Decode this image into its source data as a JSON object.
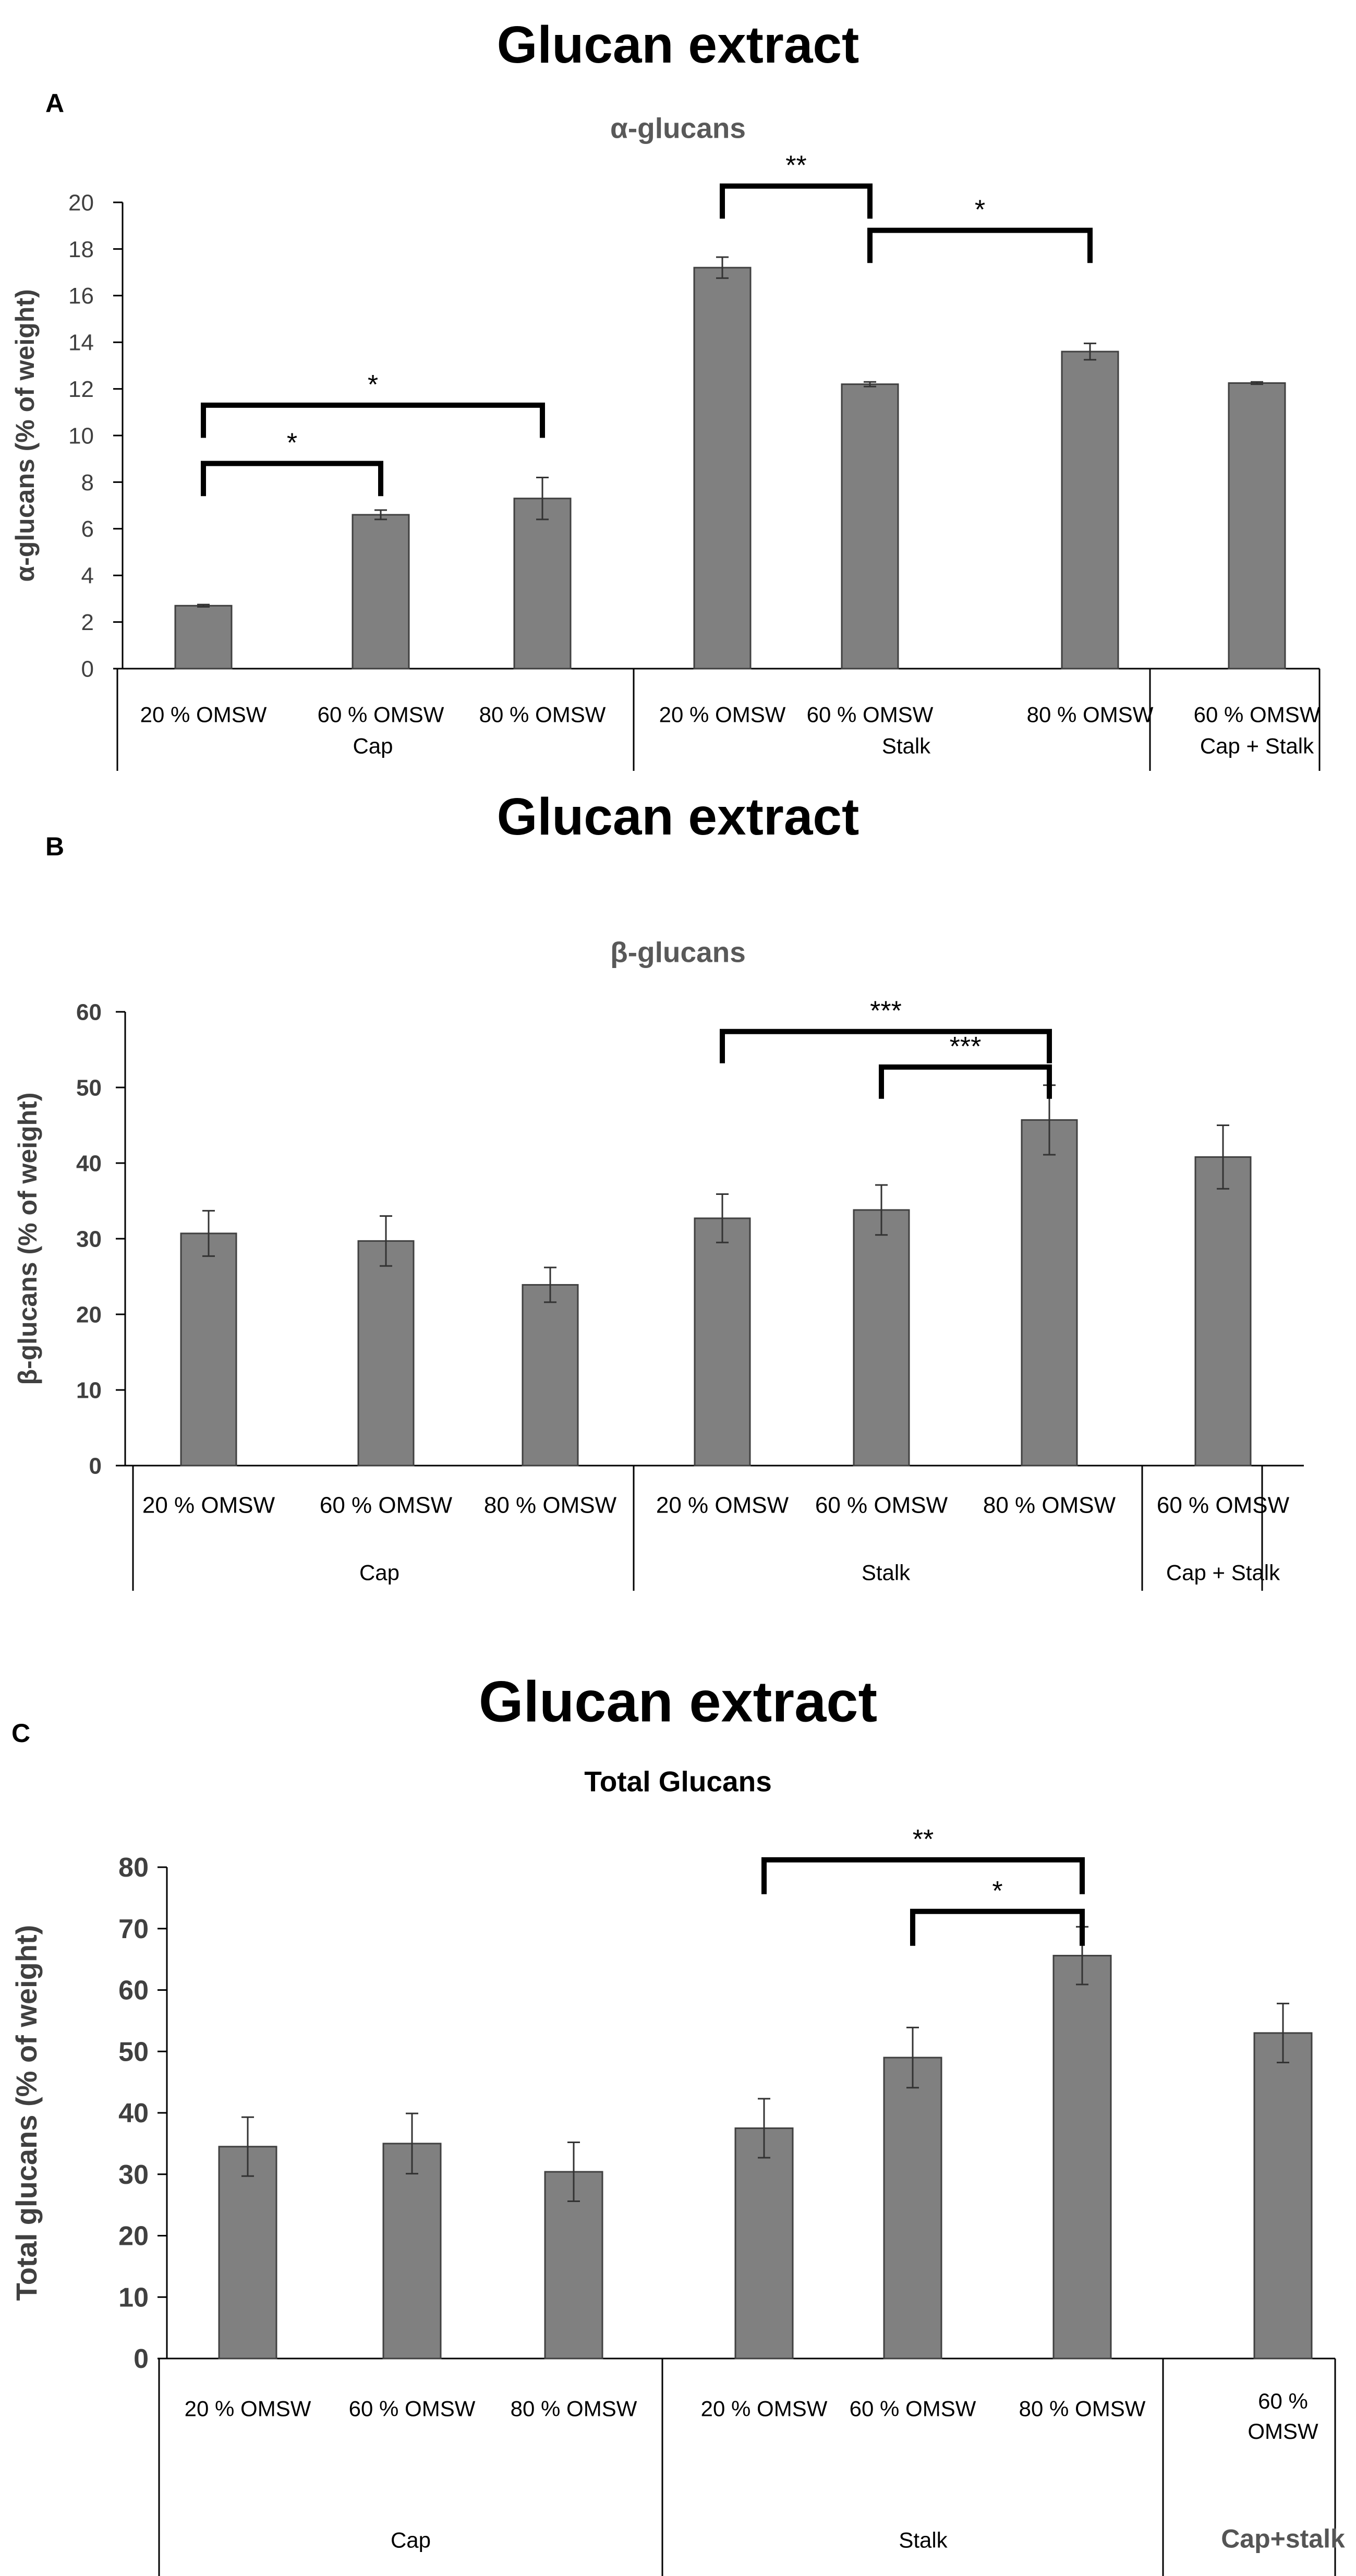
{
  "chart_data": [
    {
      "panel_label": "A",
      "main_title": "Glucan extract",
      "title": "α-glucans",
      "type": "bar",
      "ylabel": "α-glucans (% of weight)",
      "ylim": [
        0,
        20
      ],
      "yticks": [
        "0",
        "2",
        "4",
        "6",
        "8",
        "10",
        "12",
        "14",
        "16",
        "18",
        "20"
      ],
      "categories": [
        "20 % OMSW",
        "60 % OMSW",
        "80 % OMSW",
        "20 % OMSW",
        "60 % OMSW",
        "80 % OMSW",
        "60 % OMSW"
      ],
      "groups": [
        {
          "name": "Cap",
          "start": 0,
          "end": 2
        },
        {
          "name": "Stalk",
          "start": 3,
          "end": 5
        },
        {
          "name": "Cap + Stalk",
          "start": 6,
          "end": 6
        }
      ],
      "values": [
        2.7,
        6.6,
        7.3,
        17.2,
        12.2,
        13.6,
        12.25
      ],
      "errors": [
        0.05,
        0.2,
        0.9,
        0.45,
        0.1,
        0.35,
        0.05
      ],
      "significance": [
        {
          "label": "*",
          "from": 0,
          "to": 1,
          "level": 8.8
        },
        {
          "label": "*",
          "from": 0,
          "to": 2,
          "level": 11.3
        },
        {
          "label": "**",
          "from": 3,
          "to": 4,
          "level": 20.7
        },
        {
          "label": "*",
          "from": 4,
          "to": 5,
          "level": 18.8
        }
      ]
    },
    {
      "panel_label": "B",
      "main_title": "Glucan extract",
      "title": "β-glucans",
      "type": "bar",
      "ylabel": "β-glucans (% of weight)",
      "ylim": [
        0,
        60
      ],
      "yticks": [
        "0",
        "10",
        "20",
        "30",
        "40",
        "50",
        "60"
      ],
      "categories": [
        "20 % OMSW",
        "60 % OMSW",
        "80 % OMSW",
        "20 % OMSW",
        "60 % OMSW",
        "80 % OMSW",
        "60 % OMSW"
      ],
      "groups": [
        {
          "name": "Cap",
          "start": 0,
          "end": 2
        },
        {
          "name": "Stalk",
          "start": 3,
          "end": 5
        },
        {
          "name": "Cap + Stalk",
          "start": 6,
          "end": 6
        }
      ],
      "values": [
        30.7,
        29.7,
        23.9,
        32.7,
        33.8,
        45.7,
        40.8
      ],
      "errors": [
        3.0,
        3.3,
        2.3,
        3.2,
        3.3,
        4.6,
        4.2
      ],
      "significance": [
        {
          "label": "***",
          "from": 3,
          "to": 5,
          "level": 57.4
        },
        {
          "label": "***",
          "from": 4,
          "to": 5,
          "level": 52.7
        }
      ]
    },
    {
      "panel_label": "C",
      "main_title": "Glucan extract",
      "title": "Total Glucans",
      "type": "bar",
      "ylabel": "Total glucans (% of weight)",
      "ylim": [
        0,
        80
      ],
      "yticks": [
        "0",
        "10",
        "20",
        "30",
        "40",
        "50",
        "60",
        "70",
        "80"
      ],
      "categories": [
        "20 % OMSW",
        "60 % OMSW",
        "80 % OMSW",
        "20 % OMSW",
        "60 % OMSW",
        "80 % OMSW",
        "60 % OMSW"
      ],
      "groups": [
        {
          "name": "Cap",
          "start": 0,
          "end": 2
        },
        {
          "name": "Stalk",
          "start": 3,
          "end": 5
        },
        {
          "name": "Cap+stalk",
          "start": 6,
          "end": 6
        }
      ],
      "values": [
        34.5,
        35.0,
        30.4,
        37.5,
        49.0,
        65.6,
        53.0
      ],
      "errors": [
        4.8,
        4.9,
        4.8,
        4.8,
        4.9,
        4.7,
        4.8
      ],
      "significance": [
        {
          "label": "**",
          "from": 3,
          "to": 5,
          "level": 81.2
        },
        {
          "label": "*",
          "from": 4,
          "to": 5,
          "level": 72.8
        }
      ]
    }
  ],
  "colors": {
    "bar": "#808080",
    "bar_edge": "#404040",
    "axis": "#000000",
    "tick_text": "#404040",
    "subtitle": "#595959"
  }
}
